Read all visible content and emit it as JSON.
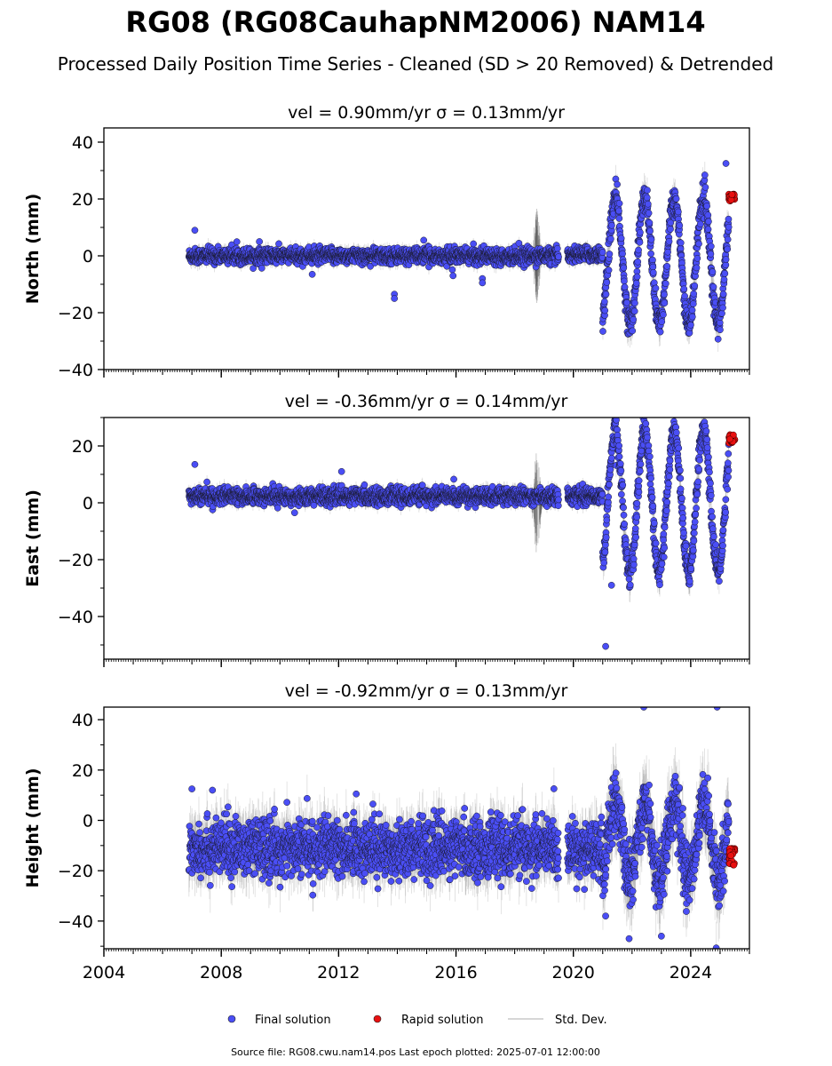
{
  "figure": {
    "title": "RG08 (RG08CauhapNM2006) NAM14",
    "subtitle": "Processed Daily Position Time Series - Cleaned (SD > 20 Removed) & Detrended",
    "footer": "Source file: RG08.cwu.nam14.pos  Last epoch plotted: 2025-07-01 12:00:00"
  },
  "legend": {
    "final_label": "Final solution",
    "rapid_label": "Rapid solution",
    "sd_label": "Std. Dev.",
    "final_color": "#4a4ef5",
    "rapid_color": "#e81010",
    "sd_color": "#c8c8c8"
  },
  "chart_data": [
    {
      "type": "scatter",
      "panel": "north",
      "title": "vel = 0.90mm/yr   σ = 0.13mm/yr",
      "ylabel": "North (mm)",
      "xlim": [
        2004.0,
        2026.0
      ],
      "ylim": [
        -40,
        45
      ],
      "yticks": [
        -40,
        -20,
        0,
        20,
        40
      ],
      "ytick_labels": [
        "−40",
        "−20",
        "0",
        "20",
        "40"
      ],
      "xticks": [
        2004,
        2008,
        2012,
        2016,
        2020,
        2024
      ],
      "xtick_labels": [
        "",
        "",
        "",
        "",
        "",
        ""
      ],
      "grid": false,
      "segments": [
        {
          "x0": 2006.9,
          "x1": 2019.5,
          "mean": 0.0,
          "noise": 1.3,
          "amp": 0,
          "sd": 1.0
        },
        {
          "x0": 2019.8,
          "x1": 2021.0,
          "mean": 0.5,
          "noise": 1.3,
          "amp": 0,
          "sd": 1.0
        },
        {
          "x0": 2021.0,
          "x1": 2025.3,
          "mean": -2.0,
          "noise": 2.5,
          "amp": 22,
          "sd": 2.0
        }
      ],
      "outliers": [
        {
          "x": 2007.1,
          "y": 9
        },
        {
          "x": 2009.3,
          "y": 5
        },
        {
          "x": 2011.1,
          "y": -6.5
        },
        {
          "x": 2013.9,
          "y": -13.5
        },
        {
          "x": 2013.9,
          "y": -15
        },
        {
          "x": 2014.9,
          "y": 5.5
        },
        {
          "x": 2015.9,
          "y": -7
        },
        {
          "x": 2016.9,
          "y": -8
        },
        {
          "x": 2016.9,
          "y": -9.5
        },
        {
          "x": 2025.2,
          "y": 32.5
        }
      ],
      "sd_spike": {
        "x": 2018.75,
        "amp": 19
      },
      "rapid": {
        "x0": 2025.3,
        "x1": 2025.5,
        "mean": 20.5,
        "spread": 1.2
      }
    },
    {
      "type": "scatter",
      "panel": "east",
      "title": "vel = -0.36mm/yr   σ = 0.14mm/yr",
      "ylabel": "East (mm)",
      "xlim": [
        2004.0,
        2026.0
      ],
      "ylim": [
        -55,
        30
      ],
      "yticks": [
        -40,
        -20,
        0,
        20
      ],
      "ytick_labels": [
        "−40",
        "−20",
        "0",
        "20"
      ],
      "xticks": [
        2004,
        2008,
        2012,
        2016,
        2020,
        2024
      ],
      "xtick_labels": [
        "",
        "",
        "",
        "",
        "",
        ""
      ],
      "grid": false,
      "segments": [
        {
          "x0": 2006.9,
          "x1": 2019.5,
          "mean": 2.3,
          "noise": 1.4,
          "amp": 0,
          "sd": 1.0
        },
        {
          "x0": 2019.8,
          "x1": 2021.0,
          "mean": 2.5,
          "noise": 1.4,
          "amp": 0,
          "sd": 1.0
        },
        {
          "x0": 2021.0,
          "x1": 2025.3,
          "mean": 0.5,
          "noise": 2.5,
          "amp": 25,
          "sd": 2.0
        }
      ],
      "outliers": [
        {
          "x": 2007.1,
          "y": 13.5
        },
        {
          "x": 2012.1,
          "y": 11
        },
        {
          "x": 2021.1,
          "y": -50.5
        },
        {
          "x": 2021.3,
          "y": -29
        },
        {
          "x": 2010.5,
          "y": -3.5
        }
      ],
      "sd_spike": {
        "x": 2018.75,
        "amp": 21
      },
      "rapid": {
        "x0": 2025.3,
        "x1": 2025.5,
        "mean": 22.5,
        "spread": 1.5
      }
    },
    {
      "type": "scatter",
      "panel": "height",
      "title": "vel = -0.92mm/yr   σ = 0.13mm/yr",
      "ylabel": "Height (mm)",
      "xlim": [
        2004.0,
        2026.0
      ],
      "ylim": [
        -51,
        45
      ],
      "yticks": [
        -40,
        -20,
        0,
        20,
        40
      ],
      "ytick_labels": [
        "−40",
        "−20",
        "0",
        "20",
        "40"
      ],
      "xticks": [
        2004,
        2008,
        2012,
        2016,
        2020,
        2024
      ],
      "xtick_labels": [
        "2004",
        "2008",
        "2012",
        "2016",
        "2020",
        "2024"
      ],
      "grid": false,
      "segments": [
        {
          "x0": 2006.9,
          "x1": 2019.5,
          "mean": -11.0,
          "noise": 5.5,
          "amp": 0,
          "sd": 4.0
        },
        {
          "x0": 2019.8,
          "x1": 2021.0,
          "mean": -12.0,
          "noise": 5.5,
          "amp": 0,
          "sd": 4.0
        },
        {
          "x0": 2021.0,
          "x1": 2025.3,
          "mean": -8.0,
          "noise": 6.0,
          "amp": 15,
          "sd": 5.0
        }
      ],
      "outliers": [
        {
          "x": 2007.0,
          "y": 12.5
        },
        {
          "x": 2007.7,
          "y": 12
        },
        {
          "x": 2012.6,
          "y": 10.5
        },
        {
          "x": 2022.4,
          "y": 45
        },
        {
          "x": 2024.9,
          "y": 45
        },
        {
          "x": 2021.9,
          "y": -47
        },
        {
          "x": 2023.0,
          "y": -46
        },
        {
          "x": 2021.1,
          "y": -38
        }
      ],
      "sd_spike": null,
      "rapid": {
        "x0": 2025.3,
        "x1": 2025.5,
        "mean": -14.5,
        "spread": 3.5
      }
    }
  ]
}
